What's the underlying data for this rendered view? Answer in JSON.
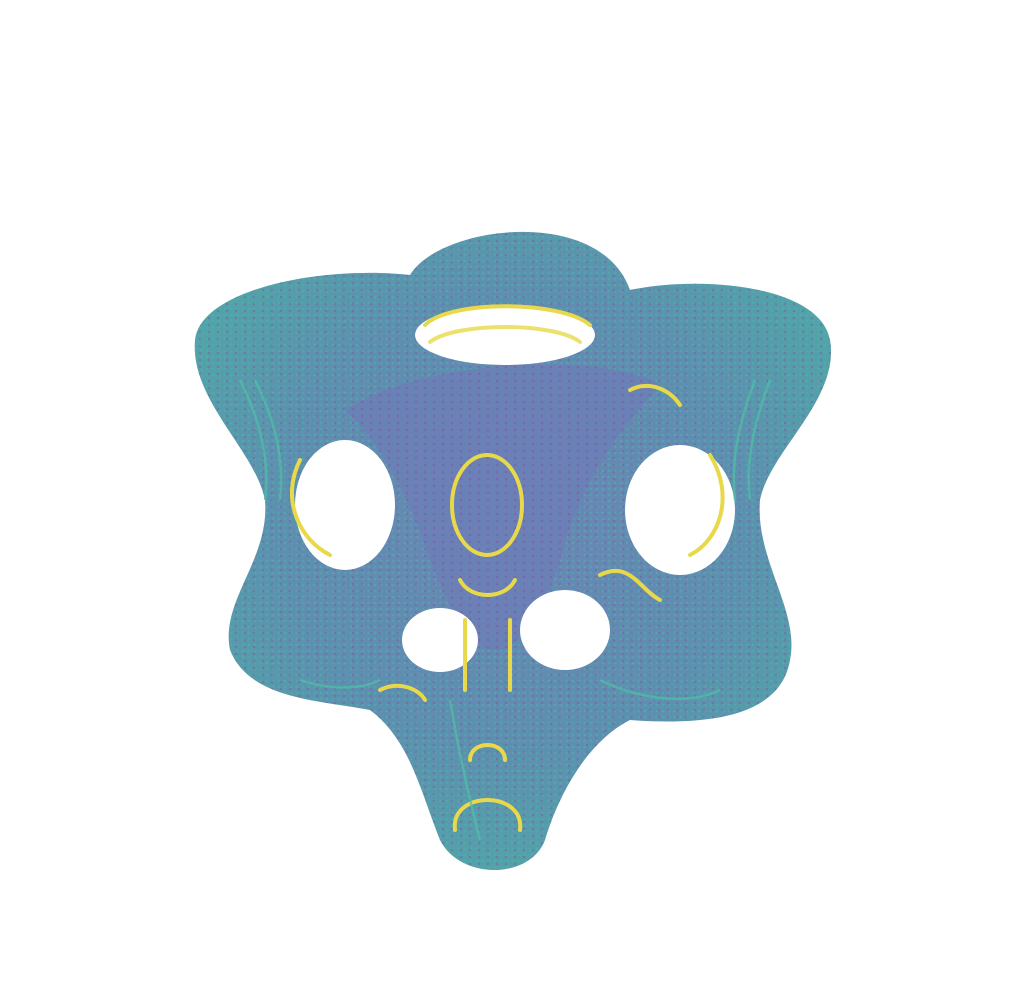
{
  "scene": {
    "subject": "point-cloud-surface",
    "colors": {
      "background": "#ffffff",
      "primary": "#5e86b0",
      "teal": "#4fb0a6",
      "magenta": "#8a4fa0",
      "yellow": "#e8d94a",
      "violet": "#6f6fb0",
      "hole": "#ffffff"
    }
  }
}
